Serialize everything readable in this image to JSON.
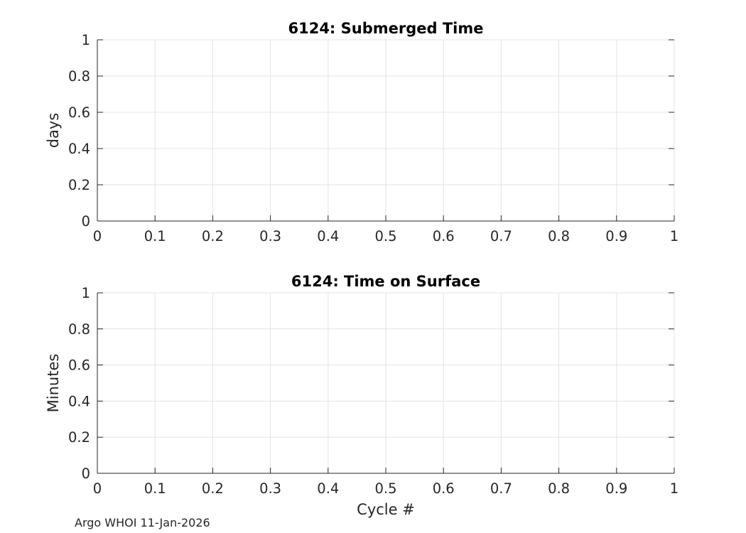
{
  "footer": "Argo WHOI 11-Jan-2026",
  "chart_data": [
    {
      "type": "line",
      "title": "6124: Submerged Time",
      "xlabel": "",
      "ylabel": "days",
      "xlim": [
        0,
        1
      ],
      "ylim": [
        0,
        1
      ],
      "grid": true,
      "x_ticks": [
        "0",
        "0.1",
        "0.2",
        "0.3",
        "0.4",
        "0.5",
        "0.6",
        "0.7",
        "0.8",
        "0.9",
        "1"
      ],
      "y_ticks": [
        "0",
        "0.2",
        "0.4",
        "0.6",
        "0.8",
        "1"
      ],
      "series": []
    },
    {
      "type": "line",
      "title": "6124: Time on Surface",
      "xlabel": "Cycle #",
      "ylabel": "Minutes",
      "xlim": [
        0,
        1
      ],
      "ylim": [
        0,
        1
      ],
      "grid": true,
      "x_ticks": [
        "0",
        "0.1",
        "0.2",
        "0.3",
        "0.4",
        "0.5",
        "0.6",
        "0.7",
        "0.8",
        "0.9",
        "1"
      ],
      "y_ticks": [
        "0",
        "0.2",
        "0.4",
        "0.6",
        "0.8",
        "1"
      ],
      "series": []
    }
  ]
}
